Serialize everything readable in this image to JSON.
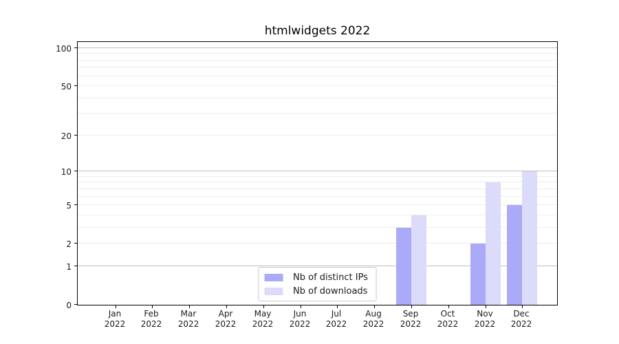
{
  "figure": {
    "title": "htmlwidgets 2022"
  },
  "chart_data": {
    "type": "bar",
    "title": "htmlwidgets 2022",
    "x_categories": [
      "Jan",
      "Feb",
      "Mar",
      "Apr",
      "May",
      "Jun",
      "Jul",
      "Aug",
      "Sep",
      "Oct",
      "Nov",
      "Dec"
    ],
    "x_year": "2022",
    "series": [
      {
        "name": "Nb of distinct IPs",
        "color": "#aaaaf8",
        "values": [
          0,
          0,
          0,
          0,
          0,
          0,
          0,
          0,
          3,
          0,
          2,
          5
        ]
      },
      {
        "name": "Nb of downloads",
        "color": "#dcdcfa",
        "values": [
          0,
          0,
          0,
          0,
          0,
          0,
          0,
          0,
          4,
          0,
          8,
          10
        ]
      }
    ],
    "y_scale": "log10(value+1)",
    "y_axis": {
      "tick_values": [
        0,
        1,
        2,
        5,
        10,
        20,
        50,
        100
      ],
      "major_gridlines": [
        1,
        10,
        100
      ],
      "minor_gridlines": [
        2,
        3,
        4,
        5,
        6,
        7,
        8,
        9,
        20,
        30,
        40,
        50,
        60,
        70,
        80,
        90
      ],
      "max_value": 100
    },
    "legend": {
      "position": "lower center",
      "entries": [
        {
          "label": "Nb of distinct IPs",
          "color": "#aaaaf8"
        },
        {
          "label": "Nb of downloads",
          "color": "#dcdcfa"
        }
      ]
    },
    "grid": true
  },
  "colors": {
    "bar_distinct_ips": "#aaaaf8",
    "bar_downloads": "#dcdcfa",
    "grid_major": "#bdbdbd",
    "grid_minor": "#ededed",
    "axis_spine": "#000000",
    "text": "#1a1a1a",
    "legend_border": "#c9c9c9",
    "background": "#ffffff"
  }
}
